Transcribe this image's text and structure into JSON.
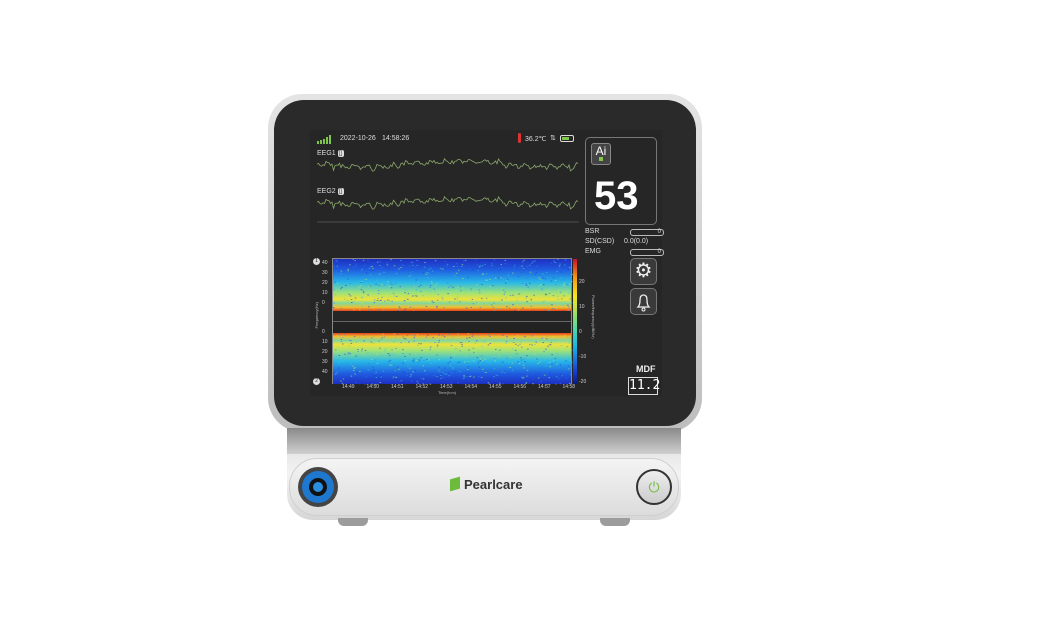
{
  "status_bar": {
    "date": "2022-10-26",
    "time": "14:58:26",
    "temperature": "36.2℃",
    "icons": [
      "signal-icon",
      "thermometer-icon",
      "transfer-icon",
      "battery-icon"
    ]
  },
  "eeg": [
    {
      "label": "EEG1"
    },
    {
      "label": "EEG2"
    }
  ],
  "index_panel": {
    "badge": "Ai",
    "value": "53"
  },
  "params": [
    {
      "label": "BSR",
      "value": "0"
    },
    {
      "label": "SD(CSD)",
      "value": "0.0(0.0)"
    },
    {
      "label": "EMG",
      "value": "0"
    }
  ],
  "buttons": {
    "settings_icon": "gear-icon",
    "alarm_icon": "bell-icon"
  },
  "mdf": {
    "label": "MDF",
    "value": "11.2"
  },
  "spectrogram": {
    "y_ticks_upper": [
      "40",
      "30",
      "20",
      "10",
      "0"
    ],
    "y_ticks_lower": [
      "0",
      "10",
      "20",
      "30",
      "40"
    ],
    "x_ticks": [
      "14:49",
      "14:50",
      "14:51",
      "14:52",
      "14:53",
      "14:54",
      "14:55",
      "14:56",
      "14:57",
      "14:58"
    ],
    "x_label": "Time(h:m)",
    "y_label": "Frequency(Hz)",
    "colorbar_label": "Power/frequency(dB/Hz)",
    "colorbar_ticks": [
      "20",
      "10",
      "0",
      "-10",
      "-20"
    ],
    "channel_markers": [
      "1",
      "2"
    ]
  },
  "brand": {
    "name": "Pearlcare",
    "accent": "#6dbb3c",
    "port_color": "#1e78d0"
  }
}
